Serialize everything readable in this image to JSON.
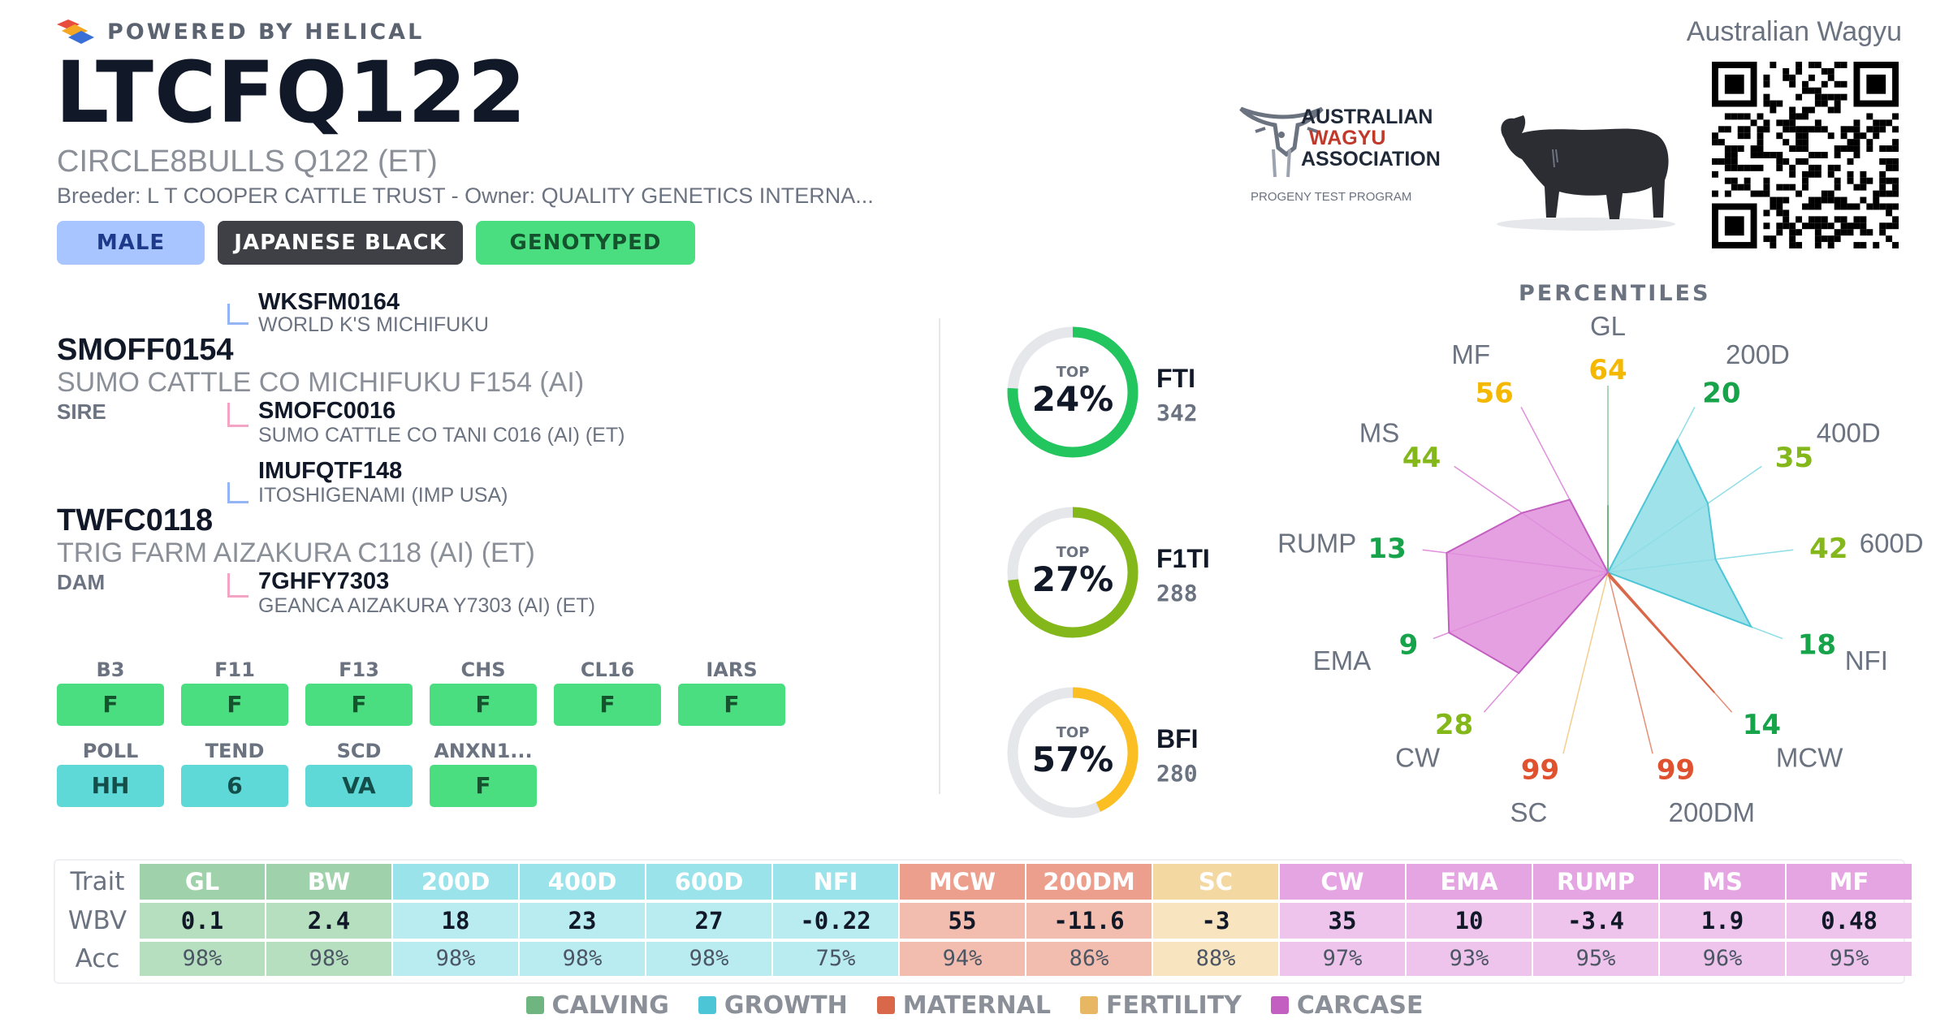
{
  "header": {
    "powered_by": "POWERED BY HELICAL",
    "bull_id": "LTCFQ122",
    "bull_name": "CIRCLE8BULLS Q122 (ET)",
    "breeder_owner": "Breeder: L T COOPER CATTLE TRUST - Owner: QUALITY GENETICS INTERNA...",
    "breed_society": "Australian Wagyu",
    "tags": [
      "MALE",
      "JAPANESE BLACK",
      "GENOTYPED"
    ]
  },
  "logos": {
    "association_lines": [
      "AUSTRALIAN",
      "WAGYU",
      "ASSOCIATION"
    ],
    "association_sub": "PROGENY TEST PROGRAM"
  },
  "pedigree": {
    "sire": {
      "id": "SMOFF0154",
      "name": "SUMO CATTLE CO MICHIFUKU F154 (AI)",
      "role": "SIRE",
      "sire": {
        "id": "WKSFM0164",
        "name": "WORLD K'S MICHIFUKU"
      },
      "dam": {
        "id": "SMOFC0016",
        "name": "SUMO CATTLE CO TANI C016 (AI) (ET)"
      }
    },
    "dam": {
      "id": "TWFC0118",
      "name": "TRIG FARM AIZAKURA C118 (AI) (ET)",
      "role": "DAM",
      "sire": {
        "id": "IMUFQTF148",
        "name": "ITOSHIGENAMI (IMP USA)"
      },
      "dam": {
        "id": "7GHFY7303",
        "name": "GEANCA AIZAKURA Y7303 (AI) (ET)"
      }
    }
  },
  "genes": [
    {
      "label": "B3",
      "value": "F",
      "color": "green"
    },
    {
      "label": "F11",
      "value": "F",
      "color": "green"
    },
    {
      "label": "F13",
      "value": "F",
      "color": "green"
    },
    {
      "label": "CHS",
      "value": "F",
      "color": "green"
    },
    {
      "label": "CL16",
      "value": "F",
      "color": "green"
    },
    {
      "label": "IARS",
      "value": "F",
      "color": "green"
    },
    {
      "label": "POLL",
      "value": "HH",
      "color": "teal"
    },
    {
      "label": "TEND",
      "value": "6",
      "color": "teal"
    },
    {
      "label": "SCD",
      "value": "VA",
      "color": "teal"
    },
    {
      "label": "ANXN1...",
      "value": "F",
      "color": "green"
    }
  ],
  "indexes": [
    {
      "name": "FTI",
      "value": "342",
      "top_label": "TOP",
      "percent_label": "24%",
      "percent": 24,
      "color": "#22c55e"
    },
    {
      "name": "F1TI",
      "value": "288",
      "top_label": "TOP",
      "percent_label": "27%",
      "percent": 27,
      "color": "#84b81a"
    },
    {
      "name": "BFI",
      "value": "280",
      "top_label": "TOP",
      "percent_label": "57%",
      "percent": 57,
      "color": "#fbbf24"
    }
  ],
  "percentiles": {
    "title": "PERCENTILES",
    "traits": [
      {
        "trait": "GL",
        "value": 64,
        "group": "calving"
      },
      {
        "trait": "200D",
        "value": 20,
        "group": "growth"
      },
      {
        "trait": "400D",
        "value": 35,
        "group": "growth"
      },
      {
        "trait": "600D",
        "value": 42,
        "group": "growth"
      },
      {
        "trait": "NFI",
        "value": 18,
        "group": "growth"
      },
      {
        "trait": "MCW",
        "value": 14,
        "group": "maternal"
      },
      {
        "trait": "200DM",
        "value": 99,
        "group": "maternal"
      },
      {
        "trait": "SC",
        "value": 99,
        "group": "fertility"
      },
      {
        "trait": "CW",
        "value": 28,
        "group": "carcase"
      },
      {
        "trait": "EMA",
        "value": 9,
        "group": "carcase"
      },
      {
        "trait": "RUMP",
        "value": 13,
        "group": "carcase"
      },
      {
        "trait": "MS",
        "value": 44,
        "group": "carcase"
      },
      {
        "trait": "MF",
        "value": 56,
        "group": "carcase"
      }
    ],
    "value_colors": {
      "green": "#16a34a",
      "olive": "#84b81a",
      "yellow": "#f5b800",
      "red": "#e0512f"
    }
  },
  "group_colors": {
    "calving": {
      "fill": "#8cc99a",
      "stroke": "#6fb57f",
      "header": "#9fd1ab",
      "cell": "#b6dfbf"
    },
    "growth": {
      "fill": "#8edde6",
      "stroke": "#4cc6d6",
      "header": "#9be3ea",
      "cell": "#b9ecf0"
    },
    "maternal": {
      "fill": "#e58f75",
      "stroke": "#d9684a",
      "header": "#ec9f8c",
      "cell": "#f2bcae"
    },
    "fertility": {
      "fill": "#f2cf8f",
      "stroke": "#e7b764",
      "header": "#f4d8a2",
      "cell": "#f8e4bf"
    },
    "carcase": {
      "fill": "#df8fdc",
      "stroke": "#c35fc0",
      "header": "#e4a5e2",
      "cell": "#eec3ec"
    }
  },
  "ebv_table": {
    "row_labels": [
      "Trait",
      "WBV",
      "Acc"
    ],
    "columns": [
      {
        "trait": "GL",
        "wbv": "0.1",
        "acc": "98%",
        "group": "calving"
      },
      {
        "trait": "BW",
        "wbv": "2.4",
        "acc": "98%",
        "group": "calving"
      },
      {
        "trait": "200D",
        "wbv": "18",
        "acc": "98%",
        "group": "growth"
      },
      {
        "trait": "400D",
        "wbv": "23",
        "acc": "98%",
        "group": "growth"
      },
      {
        "trait": "600D",
        "wbv": "27",
        "acc": "98%",
        "group": "growth"
      },
      {
        "trait": "NFI",
        "wbv": "-0.22",
        "acc": "75%",
        "group": "growth"
      },
      {
        "trait": "MCW",
        "wbv": "55",
        "acc": "94%",
        "group": "maternal"
      },
      {
        "trait": "200DM",
        "wbv": "-11.6",
        "acc": "86%",
        "group": "maternal"
      },
      {
        "trait": "SC",
        "wbv": "-3",
        "acc": "88%",
        "group": "fertility"
      },
      {
        "trait": "CW",
        "wbv": "35",
        "acc": "97%",
        "group": "carcase"
      },
      {
        "trait": "EMA",
        "wbv": "10",
        "acc": "93%",
        "group": "carcase"
      },
      {
        "trait": "RUMP",
        "wbv": "-3.4",
        "acc": "95%",
        "group": "carcase"
      },
      {
        "trait": "MS",
        "wbv": "1.9",
        "acc": "96%",
        "group": "carcase"
      },
      {
        "trait": "MF",
        "wbv": "0.48",
        "acc": "95%",
        "group": "carcase"
      }
    ]
  },
  "legend": [
    {
      "label": "CALVING",
      "group": "calving"
    },
    {
      "label": "GROWTH",
      "group": "growth"
    },
    {
      "label": "MATERNAL",
      "group": "maternal"
    },
    {
      "label": "FERTILITY",
      "group": "fertility"
    },
    {
      "label": "CARCASE",
      "group": "carcase"
    }
  ]
}
